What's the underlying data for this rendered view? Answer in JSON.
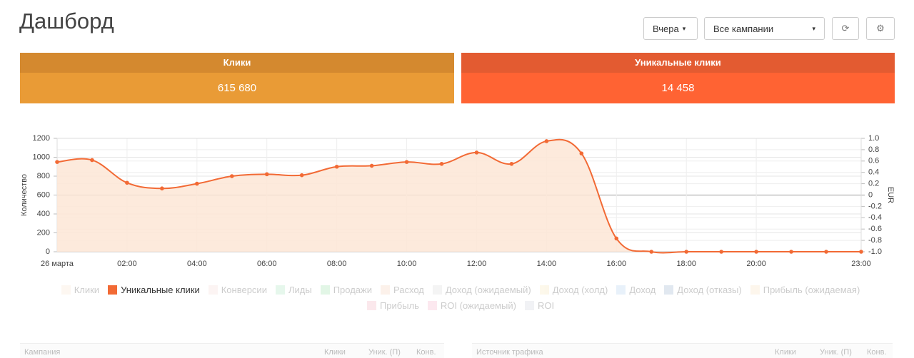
{
  "header": {
    "title": "Дашборд",
    "period": "Вчера",
    "campaigns": "Все кампании"
  },
  "cards": [
    {
      "title": "Клики",
      "value": "615 680"
    },
    {
      "title": "Уникальные клики",
      "value": "14 458"
    }
  ],
  "chart_data": {
    "type": "line",
    "ylabel": "Количество",
    "y2label": "EUR",
    "categories": [
      "26 марта",
      null,
      "02:00",
      null,
      "04:00",
      null,
      "06:00",
      null,
      "08:00",
      null,
      "10:00",
      null,
      "12:00",
      null,
      "14:00",
      null,
      "16:00",
      null,
      "18:00",
      null,
      "20:00",
      null,
      null,
      "23:00"
    ],
    "ylim": [
      0,
      1200
    ],
    "yticks": [
      0,
      200,
      400,
      600,
      800,
      1000,
      1200
    ],
    "y2lim": [
      -1,
      1
    ],
    "y2ticks": [
      {
        "value": -1,
        "label": "-1.0"
      },
      -0.8,
      -0.6,
      -0.4,
      -0.2,
      0,
      0.2,
      0.4,
      0.6,
      0.8,
      {
        "value": 1,
        "label": "1.0"
      }
    ],
    "grid": true,
    "series": [
      {
        "name": "Клики",
        "color": "#fbe1c8",
        "hidden": true
      },
      {
        "name": "Уникальные клики",
        "color": "#f26a35",
        "fill": "#fde6d6",
        "values": [
          950,
          970,
          730,
          670,
          720,
          800,
          820,
          810,
          900,
          910,
          950,
          930,
          1050,
          930,
          1170,
          1040,
          140,
          0,
          0,
          0,
          0,
          0,
          0,
          0
        ]
      },
      {
        "name": "Конверсии",
        "color": "#f5d5d0",
        "hidden": true
      },
      {
        "name": "Лиды",
        "color": "#9fe0b5",
        "hidden": true
      },
      {
        "name": "Продажи",
        "color": "#8fdca0",
        "hidden": true
      },
      {
        "name": "Расход",
        "color": "#f6c9b0",
        "hidden": true
      },
      {
        "name": "Доход (ожидаемый)",
        "color": "#d6d6d6",
        "hidden": true
      },
      {
        "name": "Доход (холд)",
        "color": "#f6e2b0",
        "hidden": true
      },
      {
        "name": "Доход",
        "color": "#a6c8ef",
        "hidden": true
      },
      {
        "name": "Доход (отказы)",
        "color": "#8aa7c7",
        "hidden": true
      },
      {
        "name": "Прибыль (ожидаемая)",
        "color": "#f8dcb8",
        "hidden": true
      },
      {
        "name": "Прибыль",
        "color": "#f0a8b8",
        "hidden": true
      },
      {
        "name": "ROI (ожидаемый)",
        "color": "#f4a6c0",
        "hidden": true
      },
      {
        "name": "ROI",
        "color": "#c9cdd8",
        "hidden": true
      }
    ]
  },
  "tables": [
    {
      "title": "Кампания",
      "columns": [
        "Клики",
        "Уник. (П)",
        "Конв."
      ]
    },
    {
      "title": "Источник трафика",
      "columns": [
        "Клики",
        "Уник. (П)",
        "Конв."
      ]
    }
  ]
}
